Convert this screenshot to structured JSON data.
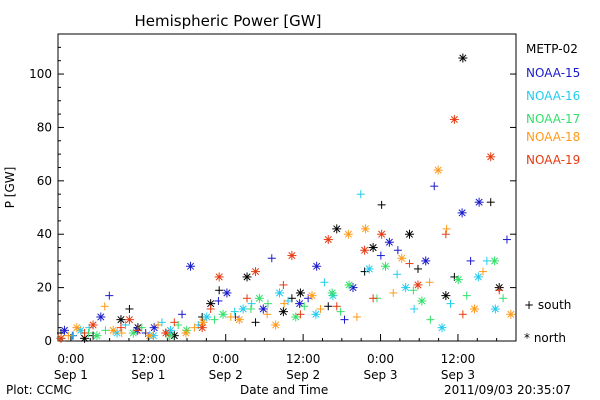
{
  "chart_data": {
    "type": "scatter",
    "title": "Hemispheric Power [GW]",
    "ylabel": "P [GW]",
    "xlabel": "Date and Time",
    "ylim": [
      0,
      115
    ],
    "yticks": [
      0,
      20,
      40,
      60,
      80,
      100
    ],
    "xlim": [
      "2011-09-01T-2",
      "2011-09-03T21"
    ],
    "x_ticks": [
      {
        "time": "0:00",
        "date": "Sep 1"
      },
      {
        "time": "12:00",
        "date": "Sep 1"
      },
      {
        "time": "0:00",
        "date": "Sep 2"
      },
      {
        "time": "12:00",
        "date": "Sep 2"
      },
      {
        "time": "0:00",
        "date": "Sep 3"
      },
      {
        "time": "12:00",
        "date": "Sep 3"
      }
    ],
    "legend_placement": "right",
    "series": [
      {
        "name": "METP-02",
        "color": "#000000",
        "values": [
          3,
          1,
          2,
          8,
          12,
          5,
          3,
          2,
          9,
          14,
          19,
          24,
          7,
          11,
          16,
          18,
          13,
          42,
          26,
          35,
          51,
          40,
          27,
          17,
          24,
          106,
          52,
          20
        ]
      },
      {
        "name": "NOAA-15",
        "color": "#1a1acc",
        "values": [
          4,
          2,
          9,
          17,
          4,
          3,
          5,
          10,
          28,
          15,
          18,
          9,
          12,
          31,
          14,
          16,
          28,
          8,
          20,
          32,
          37,
          34,
          30,
          58,
          48,
          30,
          52,
          38
        ]
      },
      {
        "name": "NOAA-16",
        "color": "#22ccee",
        "values": [
          2,
          4,
          5,
          3,
          6,
          2,
          7,
          4,
          6,
          9,
          11,
          12,
          14,
          18,
          15,
          10,
          22,
          17,
          55,
          27,
          25,
          20,
          12,
          5,
          14,
          24,
          30,
          12
        ]
      },
      {
        "name": "NOAA-17",
        "color": "#33e06a",
        "values": [
          1,
          3,
          2,
          4,
          3,
          5,
          2,
          6,
          4,
          8,
          10,
          12,
          16,
          14,
          9,
          13,
          18,
          11,
          21,
          16,
          28,
          19,
          15,
          8,
          23,
          17,
          30,
          16
        ]
      },
      {
        "name": "NOAA-18",
        "color": "#ff9a1a",
        "values": [
          2,
          5,
          13,
          4,
          3,
          2,
          6,
          3,
          5,
          7,
          9,
          8,
          10,
          6,
          14,
          17,
          12,
          40,
          9,
          42,
          18,
          31,
          22,
          64,
          42,
          12,
          26,
          10
        ]
      },
      {
        "name": "NOAA-19",
        "color": "#e83a10",
        "values": [
          1,
          3,
          6,
          5,
          8,
          4,
          3,
          7,
          5,
          12,
          24,
          16,
          26,
          21,
          32,
          10,
          38,
          13,
          34,
          16,
          40,
          29,
          21,
          40,
          83,
          10,
          69,
          19
        ]
      }
    ],
    "markers": {
      "south": "+",
      "north": "*"
    },
    "marker_legend": [
      {
        "symbol": "+",
        "label": "south"
      },
      {
        "symbol": "*",
        "label": "north"
      }
    ]
  },
  "footer": {
    "left": "Plot: CCMC",
    "right": "2011/09/03 20:35:07"
  }
}
